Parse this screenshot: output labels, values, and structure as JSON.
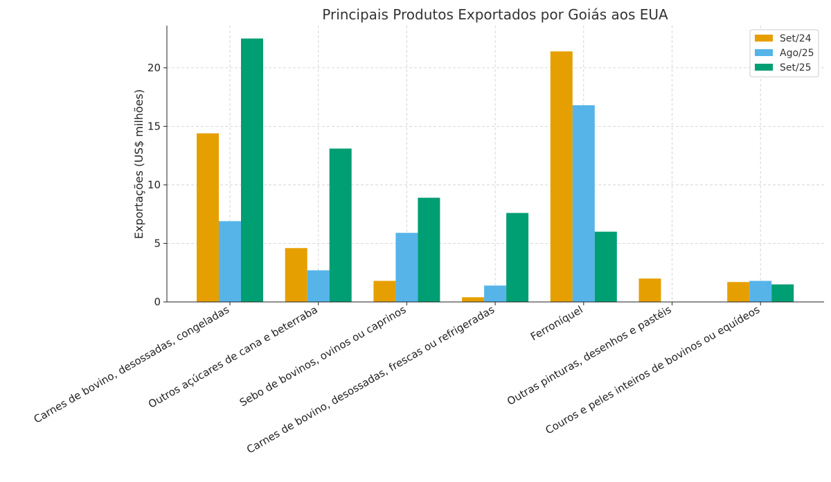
{
  "chart_data": {
    "type": "bar",
    "title": "Principais Produtos Exportados por Goiás aos EUA",
    "xlabel": "",
    "ylabel": "Exportações (US$ milhões)",
    "ylim": [
      0,
      23.6
    ],
    "yticks": [
      0,
      5,
      10,
      15,
      20
    ],
    "grid": true,
    "legend_position": "top-right",
    "categories": [
      "Carnes de bovino, desossadas, congeladas",
      "Outros açúcares de cana e beterraba",
      "Sebo de bovinos, ovinos ou caprinos",
      "Carnes de bovino, desossadas, frescas ou refrigeradas",
      "Ferroníquel",
      "Outras pinturas, desenhos e pastéis",
      "Couros e peles inteiros de bovinos ou equídeos"
    ],
    "series": [
      {
        "name": "Set/24",
        "color": "#E69F00",
        "values": [
          14.4,
          4.6,
          1.8,
          0.4,
          21.4,
          2.0,
          1.7
        ]
      },
      {
        "name": "Ago/25",
        "color": "#56B4E9",
        "values": [
          6.9,
          2.7,
          5.9,
          1.4,
          16.8,
          0,
          1.8
        ]
      },
      {
        "name": "Set/25",
        "color": "#009E73",
        "values": [
          22.5,
          13.1,
          8.9,
          7.6,
          6.0,
          0,
          1.5
        ]
      }
    ]
  }
}
